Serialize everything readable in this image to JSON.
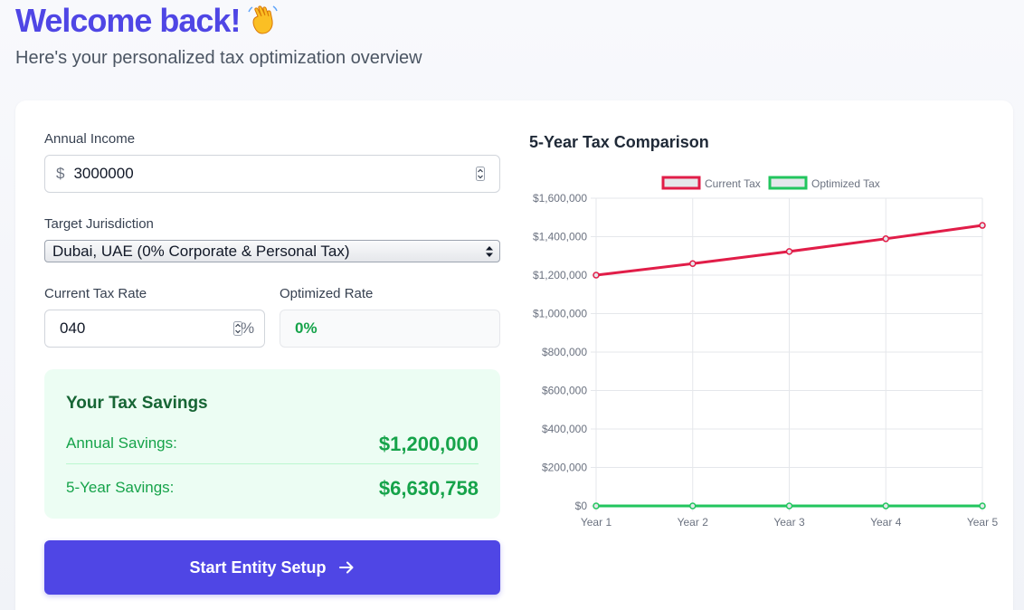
{
  "header": {
    "title": "Welcome back!",
    "subtitle": "Here's your personalized tax optimization overview"
  },
  "form": {
    "annual_income_label": "Annual Income",
    "currency_symbol": "$",
    "annual_income_value": "3000000",
    "jurisdiction_label": "Target Jurisdiction",
    "jurisdiction_value": "Dubai, UAE (0% Corporate & Personal Tax)",
    "current_rate_label": "Current Tax Rate",
    "current_rate_value": "040",
    "percent_symbol": "%",
    "optimized_rate_label": "Optimized Rate",
    "optimized_rate_value": "0%"
  },
  "savings": {
    "title": "Your Tax Savings",
    "annual_label": "Annual Savings:",
    "annual_value": "$1,200,000",
    "five_year_label": "5-Year Savings:",
    "five_year_value": "$6,630,758"
  },
  "cta": {
    "label": "Start Entity Setup"
  },
  "colors": {
    "accent": "#4f46e5",
    "current_tax": "#e11d48",
    "optimized_tax": "#22c55e"
  },
  "chart_data": {
    "type": "line",
    "title": "5-Year Tax Comparison",
    "categories": [
      "Year 1",
      "Year 2",
      "Year 3",
      "Year 4",
      "Year 5"
    ],
    "series": [
      {
        "name": "Current Tax",
        "values": [
          1200000,
          1260000,
          1323000,
          1389150,
          1458608
        ],
        "color": "#e11d48",
        "fill": "#e5e7eb"
      },
      {
        "name": "Optimized Tax",
        "values": [
          0,
          0,
          0,
          0,
          0
        ],
        "color": "#22c55e",
        "fill": "#e5e7eb"
      }
    ],
    "ylim": [
      0,
      1600000
    ],
    "yticks": [
      0,
      200000,
      400000,
      600000,
      800000,
      1000000,
      1200000,
      1400000,
      1600000
    ],
    "ytick_labels": [
      "$0",
      "$200,000",
      "$400,000",
      "$600,000",
      "$800,000",
      "$1,000,000",
      "$1,200,000",
      "$1,400,000",
      "$1,600,000"
    ],
    "grid": true,
    "legend": "top-center"
  }
}
